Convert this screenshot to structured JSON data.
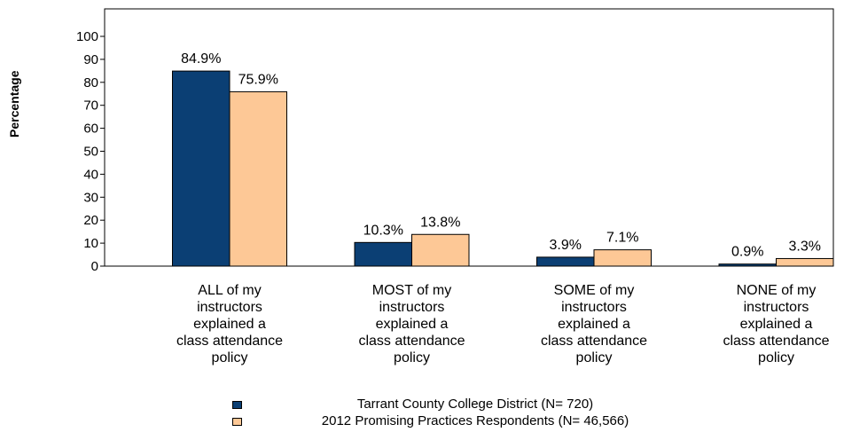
{
  "chart_data": {
    "type": "bar",
    "title": "",
    "xlabel": "",
    "ylabel": "Percentage",
    "ylim": [
      0,
      100
    ],
    "yticks": [
      0,
      10,
      20,
      30,
      40,
      50,
      60,
      70,
      80,
      90,
      100
    ],
    "categories": [
      "ALL of my\ninstructors\nexplained a\nclass attendance\npolicy",
      "MOST of my\ninstructors\nexplained a\nclass attendance\npolicy",
      "SOME of my\ninstructors\nexplained a\nclass attendance\npolicy",
      "NONE of my\ninstructors\nexplained a\nclass attendance\npolicy"
    ],
    "series": [
      {
        "name": "Tarrant County College District  (N= 720)",
        "values": [
          84.9,
          10.3,
          3.9,
          0.9
        ],
        "labels": [
          "84.9%",
          "10.3%",
          "3.9%",
          "0.9%"
        ],
        "color": "#0b3f74"
      },
      {
        "name": "2012 Promising Practices Respondents (N= 46,566)",
        "values": [
          75.9,
          13.8,
          7.1,
          3.3
        ],
        "labels": [
          "75.9%",
          "13.8%",
          "7.1%",
          "3.3%"
        ],
        "color": "#fdc896"
      }
    ],
    "grid": false,
    "legend_position": "bottom"
  }
}
